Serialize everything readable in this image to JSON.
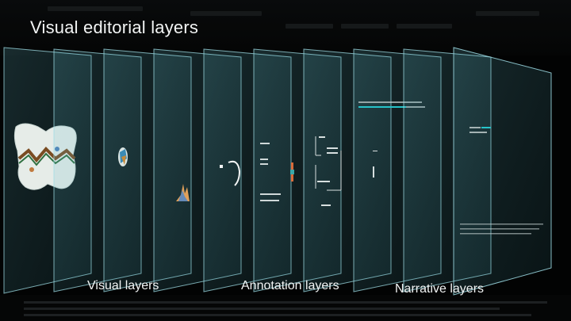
{
  "slide": {
    "title": "Visual editorial layers"
  },
  "layer_groups": [
    {
      "id": "visual",
      "label": "Visual layers"
    },
    {
      "id": "annotation",
      "label": "Annotation layers"
    },
    {
      "id": "narrative",
      "label": "Narrative layers"
    }
  ],
  "colors": {
    "background": "#020303",
    "panel_fill": "#5fb9c8",
    "panel_edge": "#9fdde6",
    "text": "#f2f4f4",
    "accent_teal": "#27c3c9"
  }
}
